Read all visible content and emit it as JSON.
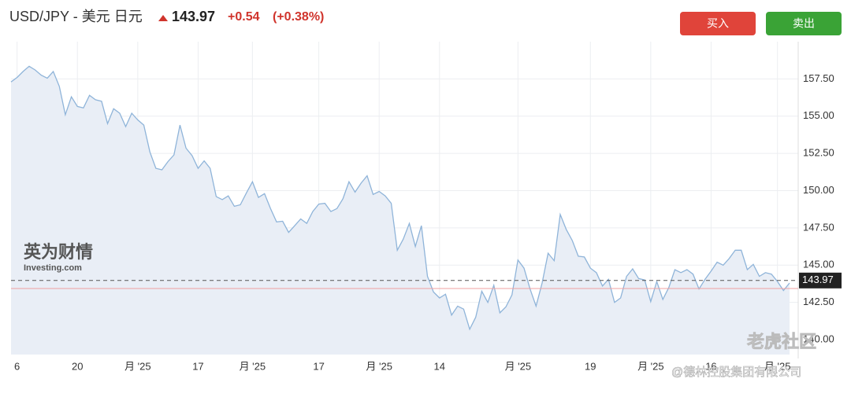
{
  "header": {
    "title": "USD/JPY - 美元 日元",
    "price": "143.97",
    "change": "+0.54",
    "change_pct": "(+0.38%)"
  },
  "buttons": {
    "buy": "买入",
    "sell": "卖出"
  },
  "watermarks": {
    "brand": "英为财情",
    "brand_sub": "Investing.com",
    "community": "老虎社区",
    "owner": "@德林控股集团有限公司"
  },
  "chart_data": {
    "type": "area",
    "series": [
      {
        "name": "USD/JPY",
        "color": "#8fb4d9",
        "values": [
          157.3,
          157.6,
          158.0,
          158.35,
          158.1,
          157.75,
          157.55,
          158.0,
          157.0,
          155.1,
          156.3,
          155.65,
          155.55,
          156.4,
          156.1,
          156.0,
          154.5,
          155.5,
          155.2,
          154.3,
          155.2,
          154.75,
          154.4,
          152.6,
          151.5,
          151.4,
          151.95,
          152.4,
          154.4,
          152.85,
          152.35,
          151.5,
          152.0,
          151.5,
          149.6,
          149.4,
          149.65,
          148.95,
          149.05,
          149.85,
          150.6,
          149.55,
          149.8,
          148.8,
          147.9,
          147.95,
          147.2,
          147.65,
          148.1,
          147.8,
          148.6,
          149.1,
          149.15,
          148.6,
          148.8,
          149.45,
          150.6,
          149.9,
          150.5,
          151.0,
          149.75,
          149.95,
          149.65,
          149.15,
          146.0,
          146.75,
          147.8,
          146.25,
          147.65,
          144.25,
          143.2,
          142.8,
          143.05,
          141.65,
          142.25,
          142.05,
          140.7,
          141.5,
          143.25,
          142.5,
          143.65,
          141.8,
          142.2,
          143.0,
          145.35,
          144.8,
          143.4,
          142.25,
          143.8,
          145.8,
          145.3,
          148.4,
          147.4,
          146.65,
          145.6,
          145.55,
          144.8,
          144.5,
          143.6,
          144.05,
          142.5,
          142.8,
          144.25,
          144.75,
          144.1,
          144.0,
          142.55,
          143.9,
          142.7,
          143.5,
          144.7,
          144.5,
          144.7,
          144.4,
          143.4,
          144.05,
          144.6,
          145.2,
          145.0,
          145.45,
          146.0,
          146.0,
          144.7,
          145.05,
          144.25,
          144.5,
          144.4,
          143.9,
          143.3,
          143.8
        ]
      }
    ],
    "last_price": 143.97,
    "reference_line": 143.43,
    "xlim": [
      0,
      129
    ],
    "xticks": [
      {
        "value": 1,
        "label": "6"
      },
      {
        "value": 11,
        "label": "20"
      },
      {
        "value": 21,
        "label": "月 '25"
      },
      {
        "value": 31,
        "label": "17"
      },
      {
        "value": 40,
        "label": "月 '25"
      },
      {
        "value": 51,
        "label": "17"
      },
      {
        "value": 61,
        "label": "月 '25"
      },
      {
        "value": 71,
        "label": "14"
      },
      {
        "value": 84,
        "label": "月 '25"
      },
      {
        "value": 96,
        "label": "19"
      },
      {
        "value": 106,
        "label": "月 '25"
      },
      {
        "value": 116,
        "label": "16"
      },
      {
        "value": 127,
        "label": "月 '25"
      }
    ],
    "ylim": [
      139,
      160
    ],
    "yticks": [
      {
        "value": 140,
        "label": "140.00"
      },
      {
        "value": 142.5,
        "label": "142.50"
      },
      {
        "value": 145,
        "label": "145.00"
      },
      {
        "value": 147.5,
        "label": "147.50"
      },
      {
        "value": 150,
        "label": "150.00"
      },
      {
        "value": 152.5,
        "label": "152.50"
      },
      {
        "value": 155,
        "label": "155.00"
      },
      {
        "value": 157.5,
        "label": "157.50"
      }
    ],
    "grid": true
  }
}
